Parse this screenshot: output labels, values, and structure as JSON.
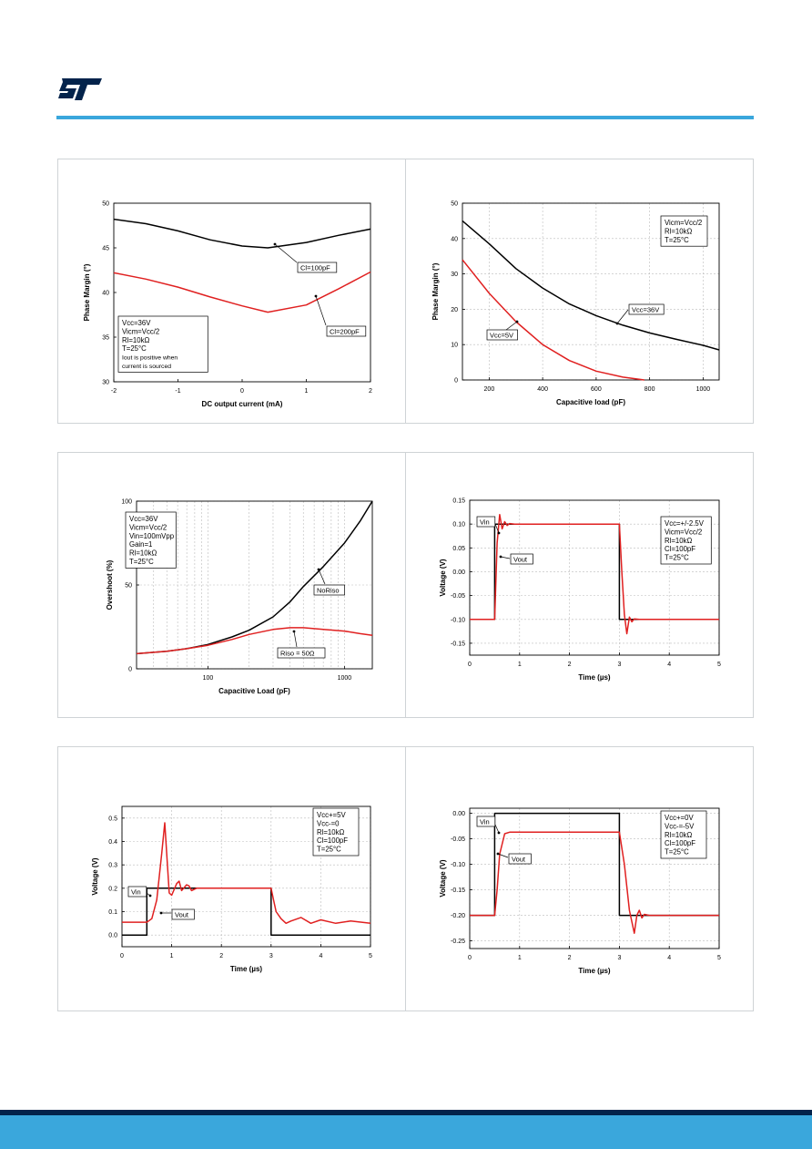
{
  "brand": {
    "logo_name": "st-logo",
    "accent_color": "#3aa7dc",
    "footer_color": "#03234b"
  },
  "chart_data": [
    {
      "type": "line",
      "xlabel": "DC output current (mA)",
      "ylabel": "Phase Margin (°)",
      "xlim": [
        -2,
        2
      ],
      "ylim": [
        30,
        50
      ],
      "xticks": [
        -2,
        -1,
        0,
        1,
        2
      ],
      "yticks": [
        30,
        35,
        40,
        45,
        50
      ],
      "grid": false,
      "legend_box": [
        "Vcc=36V",
        "Vicm=Vcc/2",
        "Rl=10kΩ",
        "T=25°C",
        "Iout is positive when",
        "current is sourced"
      ],
      "legend_placement": "bottom-left",
      "series": [
        {
          "name": "Cl=100pF",
          "color": "#000000",
          "x": [
            -2,
            -1.5,
            -1,
            -0.5,
            0,
            0.4,
            1,
            1.5,
            2
          ],
          "y": [
            48.2,
            47.7,
            46.9,
            45.9,
            45.2,
            45.0,
            45.6,
            46.4,
            47.1
          ]
        },
        {
          "name": "Cl=200pF",
          "color": "#e02020",
          "x": [
            -2,
            -1.5,
            -1,
            -0.5,
            0,
            0.4,
            1,
            1.5,
            2
          ],
          "y": [
            42.2,
            41.5,
            40.6,
            39.5,
            38.5,
            37.8,
            38.6,
            40.4,
            42.3
          ]
        }
      ]
    },
    {
      "type": "line",
      "xlabel": "Capacitive load (pF)",
      "ylabel": "Phase Margin (°)",
      "xlim": [
        100,
        1060
      ],
      "ylim": [
        0,
        50
      ],
      "xticks": [
        200,
        400,
        600,
        800,
        1000
      ],
      "yticks": [
        0,
        10,
        20,
        30,
        40,
        50
      ],
      "grid": true,
      "legend_box": [
        "Vicm=Vcc/2",
        "Rl=10kΩ",
        "T=25°C"
      ],
      "legend_placement": "top-right",
      "series": [
        {
          "name": "Vcc=36V",
          "color": "#000000",
          "x": [
            100,
            200,
            300,
            400,
            500,
            600,
            700,
            800,
            900,
            1000,
            1060
          ],
          "y": [
            45,
            38.5,
            31.5,
            26,
            21.5,
            18.2,
            15.5,
            13.3,
            11.5,
            9.8,
            8.5
          ]
        },
        {
          "name": "Vcc=5V",
          "color": "#e02020",
          "x": [
            100,
            200,
            300,
            400,
            500,
            600,
            700,
            780
          ],
          "y": [
            34,
            24.5,
            16.5,
            10,
            5.5,
            2.5,
            0.8,
            0
          ]
        }
      ]
    },
    {
      "type": "line",
      "xlabel": "Capacitive Load (pF)",
      "ylabel": "Overshoot (%)",
      "xscale": "log",
      "xlim": [
        30,
        1600
      ],
      "ylim": [
        0,
        100
      ],
      "xticks": [
        100,
        1000
      ],
      "yticks": [
        0,
        50,
        100
      ],
      "grid": true,
      "legend_box": [
        "Vcc=36V",
        "Vicm=Vcc/2",
        "Vin=100mVpp",
        "Gain=1",
        "Rl=10kΩ",
        "T=25°C"
      ],
      "legend_placement": "top-left",
      "series": [
        {
          "name": "NoRiso",
          "color": "#000000",
          "x": [
            30,
            50,
            70,
            100,
            150,
            200,
            300,
            400,
            500,
            700,
            1000,
            1300,
            1600
          ],
          "y": [
            9,
            10.5,
            12,
            14.5,
            19,
            23,
            31,
            40,
            49,
            61,
            75,
            88,
            100
          ]
        },
        {
          "name": "Riso = 50Ω",
          "color": "#e02020",
          "x": [
            30,
            50,
            70,
            100,
            150,
            200,
            300,
            400,
            500,
            700,
            1000,
            1300,
            1600
          ],
          "y": [
            9,
            10.5,
            12,
            14,
            17.5,
            20.5,
            23.5,
            24.5,
            24.5,
            23.5,
            22.5,
            21,
            20
          ]
        }
      ]
    },
    {
      "type": "line",
      "xlabel": "Time (µs)",
      "ylabel": "Voltage (V)",
      "xlim": [
        0,
        5
      ],
      "ylim": [
        -0.175,
        0.15
      ],
      "xticks": [
        0,
        1,
        2,
        3,
        4,
        5
      ],
      "yticks": [
        -0.15,
        -0.1,
        -0.05,
        0.0,
        0.05,
        0.1,
        0.15
      ],
      "ytick_labels": [
        "-0.15",
        "-0.10",
        "-0.05",
        "0.00",
        "0.05",
        "0.10",
        "0.15"
      ],
      "grid": true,
      "legend_box": [
        "Vcc=+/-2.5V",
        "Vicm=Vcc/2",
        "Rl=10kΩ",
        "Cl=100pF",
        "T=25°C"
      ],
      "legend_placement": "top-right",
      "series": [
        {
          "name": "Vin",
          "color": "#000000",
          "x": [
            0,
            0.5,
            0.5,
            3.0,
            3.0,
            5.0
          ],
          "y": [
            -0.1,
            -0.1,
            0.1,
            0.1,
            -0.1,
            -0.1
          ]
        },
        {
          "name": "Vout",
          "color": "#e02020",
          "x": [
            0,
            0.5,
            0.55,
            0.6,
            0.65,
            0.7,
            0.75,
            0.8,
            0.9,
            1.0,
            3.0,
            3.05,
            3.1,
            3.15,
            3.2,
            3.25,
            3.3,
            3.4,
            5.0
          ],
          "y": [
            -0.1,
            -0.1,
            0.06,
            0.12,
            0.09,
            0.105,
            0.097,
            0.101,
            0.1,
            0.1,
            0.1,
            0.0,
            -0.09,
            -0.13,
            -0.095,
            -0.105,
            -0.099,
            -0.1,
            -0.1
          ]
        }
      ]
    },
    {
      "type": "line",
      "xlabel": "Time (µs)",
      "ylabel": "Voltage (V)",
      "xlim": [
        0,
        5
      ],
      "ylim": [
        -0.05,
        0.55
      ],
      "xticks": [
        0,
        1,
        2,
        3,
        4,
        5
      ],
      "yticks": [
        0.0,
        0.1,
        0.2,
        0.3,
        0.4,
        0.5
      ],
      "ytick_labels": [
        "0.0",
        "0.1",
        "0.2",
        "0.3",
        "0.4",
        "0.5"
      ],
      "grid": true,
      "legend_box": [
        "Vcc+=5V",
        "Vcc-=0",
        "Rl=10kΩ",
        "Cl=100pF",
        "T=25°C"
      ],
      "legend_placement": "top-right",
      "series": [
        {
          "name": "Vin",
          "color": "#000000",
          "x": [
            0,
            0.5,
            0.5,
            3.0,
            3.0,
            5.0
          ],
          "y": [
            0.0,
            0.0,
            0.2,
            0.2,
            0.0,
            0.0
          ]
        },
        {
          "name": "Vout",
          "color": "#e02020",
          "x": [
            0,
            0.5,
            0.6,
            0.7,
            0.8,
            0.86,
            0.9,
            0.95,
            1.0,
            1.1,
            1.15,
            1.2,
            1.3,
            1.35,
            1.4,
            1.5,
            2.0,
            3.0,
            3.05,
            3.1,
            3.2,
            3.3,
            3.4,
            3.6,
            3.8,
            4.0,
            4.3,
            4.6,
            5.0
          ],
          "y": [
            0.055,
            0.055,
            0.07,
            0.15,
            0.35,
            0.48,
            0.35,
            0.18,
            0.17,
            0.22,
            0.23,
            0.19,
            0.215,
            0.21,
            0.19,
            0.2,
            0.2,
            0.2,
            0.15,
            0.1,
            0.07,
            0.05,
            0.06,
            0.075,
            0.05,
            0.065,
            0.05,
            0.06,
            0.05
          ]
        }
      ]
    },
    {
      "type": "line",
      "xlabel": "Time (µs)",
      "ylabel": "Voltage (V)",
      "xlim": [
        0,
        5
      ],
      "ylim": [
        -0.265,
        0.01
      ],
      "xticks": [
        0,
        1,
        2,
        3,
        4,
        5
      ],
      "yticks": [
        -0.25,
        -0.2,
        -0.15,
        -0.1,
        -0.05,
        0.0
      ],
      "ytick_labels": [
        "-0.25",
        "-0.20",
        "-0.15",
        "-0.10",
        "-0.05",
        "0.00"
      ],
      "grid": true,
      "legend_box": [
        "Vcc+=0V",
        "Vcc-=-5V",
        "Rl=10kΩ",
        "Cl=100pF",
        "T=25°C"
      ],
      "legend_placement": "top-right",
      "series": [
        {
          "name": "Vin",
          "color": "#000000",
          "x": [
            0,
            0.5,
            0.5,
            3.0,
            3.0,
            5.0
          ],
          "y": [
            -0.2,
            -0.2,
            0.0,
            0.0,
            -0.2,
            -0.2
          ]
        },
        {
          "name": "Vout",
          "color": "#e02020",
          "x": [
            0,
            0.5,
            0.55,
            0.6,
            0.7,
            0.8,
            1.0,
            3.0,
            3.1,
            3.2,
            3.3,
            3.35,
            3.4,
            3.45,
            3.5,
            3.6,
            3.7,
            5.0
          ],
          "y": [
            -0.2,
            -0.2,
            -0.15,
            -0.08,
            -0.04,
            -0.037,
            -0.037,
            -0.037,
            -0.1,
            -0.19,
            -0.235,
            -0.2,
            -0.19,
            -0.205,
            -0.198,
            -0.2,
            -0.2,
            -0.2
          ]
        }
      ]
    }
  ]
}
